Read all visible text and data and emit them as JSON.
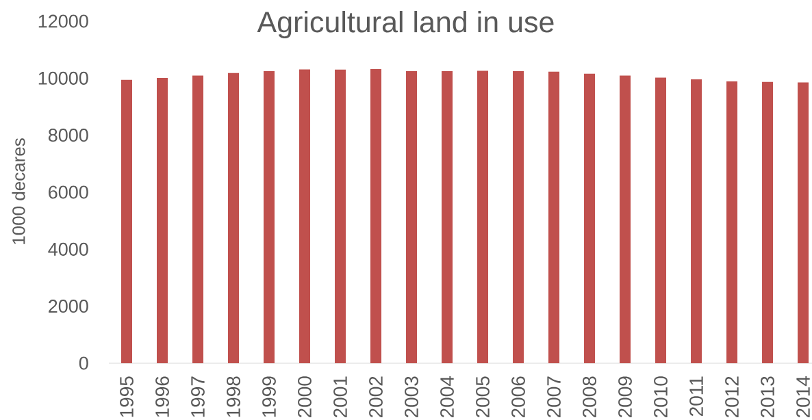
{
  "chart_data": {
    "type": "bar",
    "title": "Agricultural land in use",
    "ylabel": "1000 decares",
    "categories": [
      "1995",
      "1996",
      "1997",
      "1998",
      "1999",
      "2000",
      "2001",
      "2002",
      "2003",
      "2004",
      "2005",
      "2006",
      "2007",
      "2008",
      "2009",
      "2010",
      "2011",
      "2012",
      "2013",
      "2014"
    ],
    "values": [
      9940,
      10010,
      10090,
      10180,
      10250,
      10310,
      10300,
      10320,
      10250,
      10250,
      10260,
      10250,
      10230,
      10160,
      10090,
      10020,
      9960,
      9890,
      9870,
      9850
    ],
    "color": "#c0504d",
    "ylim": [
      0,
      12000
    ],
    "yticks": [
      0,
      2000,
      4000,
      6000,
      8000,
      10000,
      12000
    ]
  }
}
